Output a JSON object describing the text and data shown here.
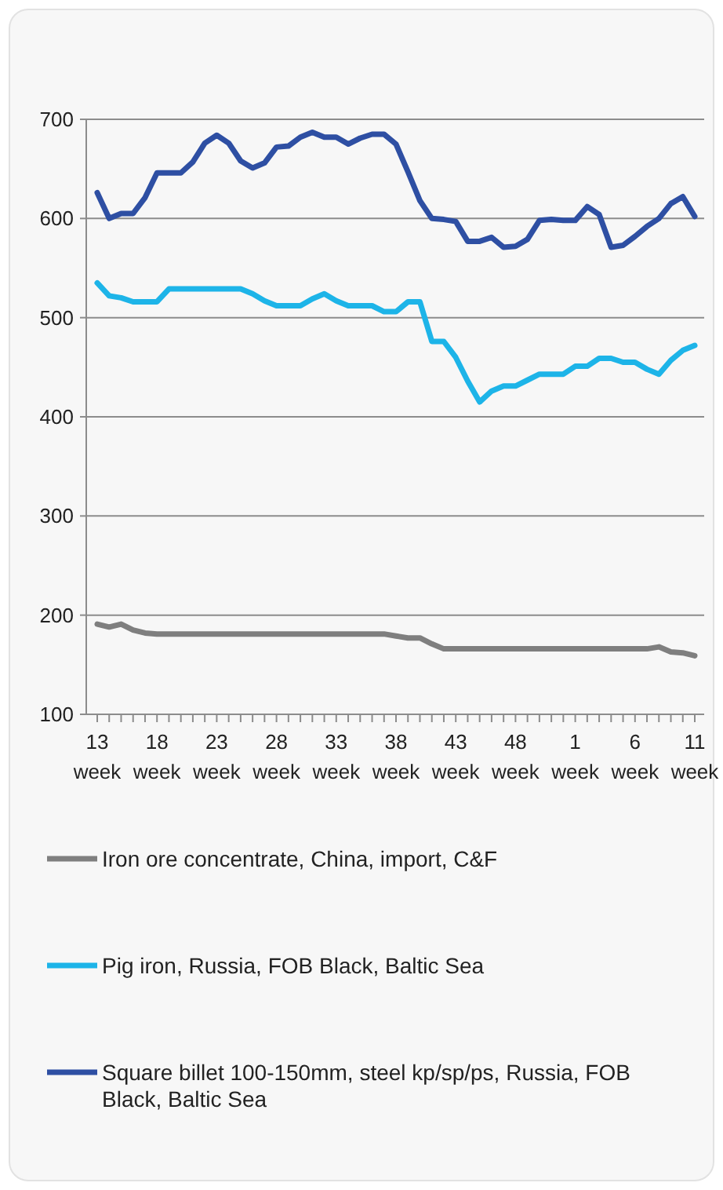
{
  "chart_data": {
    "type": "line",
    "categories": [
      "13 week",
      null,
      null,
      null,
      null,
      "18 week",
      null,
      null,
      null,
      null,
      "23 week",
      null,
      null,
      null,
      null,
      "28 week",
      null,
      null,
      null,
      null,
      "33 week",
      null,
      null,
      null,
      null,
      "38 week",
      null,
      null,
      null,
      null,
      "43 week",
      null,
      null,
      null,
      null,
      "48 week",
      null,
      null,
      null,
      null,
      "1 week",
      null,
      null,
      null,
      null,
      "6 week",
      null,
      null,
      null,
      null,
      "11 week"
    ],
    "series": [
      {
        "name": "Iron ore concentrate, China, import, C&F",
        "color": "#7f7f7f",
        "values": [
          191,
          188,
          191,
          185,
          182,
          181,
          181,
          181,
          181,
          181,
          181,
          181,
          181,
          181,
          181,
          181,
          181,
          181,
          181,
          181,
          181,
          181,
          181,
          181,
          181,
          179,
          177,
          177,
          171,
          166,
          166,
          166,
          166,
          166,
          166,
          166,
          166,
          166,
          166,
          166,
          166,
          166,
          166,
          166,
          166,
          166,
          166,
          168,
          163,
          162,
          159
        ]
      },
      {
        "name": "Pig iron, Russia, FOB Black, Baltic Sea",
        "color": "#1db4e8",
        "values": [
          535,
          522,
          520,
          516,
          516,
          516,
          529,
          529,
          529,
          529,
          529,
          529,
          529,
          524,
          517,
          512,
          512,
          512,
          519,
          524,
          517,
          512,
          512,
          512,
          506,
          506,
          516,
          516,
          476,
          476,
          460,
          436,
          415,
          426,
          431,
          431,
          437,
          443,
          443,
          443,
          451,
          451,
          459,
          459,
          455,
          455,
          448,
          443,
          457,
          467,
          472
        ]
      },
      {
        "name": "Square billet 100-150mm, steel kp/sp/ps, Russia, FOB Black, Baltic Sea",
        "color": "#2e4fa3",
        "values": [
          626,
          600,
          605,
          605,
          621,
          646,
          646,
          646,
          657,
          676,
          684,
          676,
          658,
          651,
          656,
          672,
          673,
          682,
          687,
          682,
          682,
          675,
          681,
          685,
          685,
          675,
          647,
          618,
          600,
          599,
          597,
          577,
          577,
          581,
          571,
          572,
          579,
          598,
          599,
          598,
          598,
          612,
          604,
          571,
          573,
          582,
          592,
          600,
          615,
          622,
          602
        ]
      }
    ],
    "ylim": [
      100,
      700
    ],
    "yticks": [
      100,
      200,
      300,
      400,
      500,
      600,
      700
    ],
    "grid": "y",
    "legend": "bottom",
    "marker": "none",
    "line_style": "solid"
  }
}
